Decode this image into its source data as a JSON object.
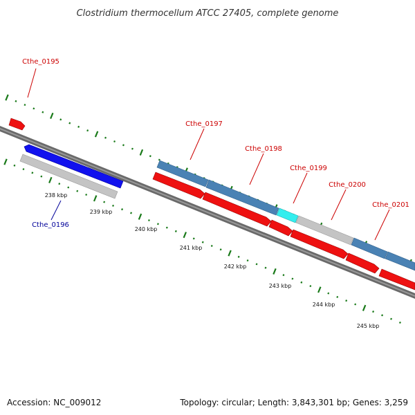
{
  "title": "Clostridium thermocellum ATCC 27405, complete genome",
  "footer": {
    "accession": "Accession: NC_009012",
    "summary": "Topology: circular; Length: 3,843,301 bp; Genes: 3,259"
  },
  "colors": {
    "backbone": "#777777",
    "scale_dots": "#1a7a1a",
    "gene_red": "#ee1111",
    "gene_blue": "#1111ee",
    "gene_steel": "#4a82b4",
    "gene_gray": "#c4c4c4",
    "gene_cyan": "#33eeee",
    "label_red": "#cc0000",
    "label_blue": "#000099"
  },
  "scale_labels": [
    "238 kbp",
    "239 kbp",
    "240 kbp",
    "241 kbp",
    "242 kbp",
    "243 kbp",
    "244 kbp",
    "245 kbp"
  ],
  "gene_labels": [
    {
      "id": "cthe-0195",
      "text": "Cthe_0195",
      "color": "red"
    },
    {
      "id": "cthe-0196",
      "text": "Cthe_0196",
      "color": "blue"
    },
    {
      "id": "cthe-0197",
      "text": "Cthe_0197",
      "color": "red"
    },
    {
      "id": "cthe-0198",
      "text": "Cthe_0198",
      "color": "red"
    },
    {
      "id": "cthe-0199",
      "text": "Cthe_0199",
      "color": "red"
    },
    {
      "id": "cthe-0200",
      "text": "Cthe_0200",
      "color": "red"
    },
    {
      "id": "cthe-0201",
      "text": "Cthe_0201",
      "color": "red"
    }
  ]
}
